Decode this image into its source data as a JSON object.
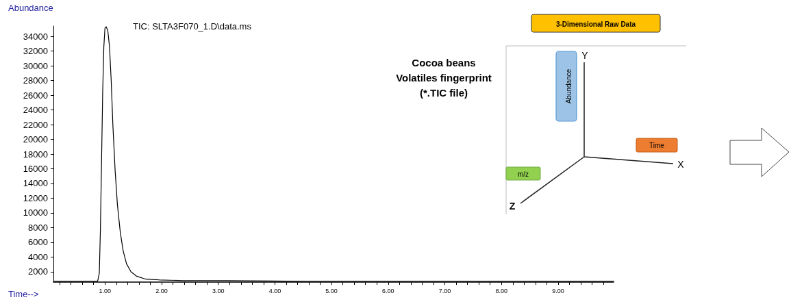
{
  "chart_data": {
    "type": "line",
    "title": "TIC: SLTA3F070_1.D\\data.ms",
    "xlabel": "Time-->",
    "ylabel": "Abundance",
    "annotations": [
      "Cocoa beans\nVolatiles fingerprint\n(*.TIC file)",
      "3-Dimensional Raw Data",
      "Abundance",
      "Time",
      "m/z",
      "Y",
      "X",
      "Z"
    ],
    "series": [
      {
        "color": "#000000",
        "x": [
          0.1,
          0.87,
          0.9,
          0.92,
          0.94,
          0.96,
          0.98,
          1.0,
          1.02,
          1.05,
          1.08,
          1.11,
          1.14,
          1.18,
          1.22,
          1.27,
          1.32,
          1.38,
          1.46,
          1.56,
          1.72,
          1.96,
          2.37,
          3.17,
          4.56,
          9.98
        ],
        "values": [
          700,
          700,
          1800,
          7900,
          17200,
          26500,
          32600,
          35100,
          35300,
          34800,
          32600,
          28000,
          21900,
          15700,
          11100,
          7400,
          4900,
          3100,
          2000,
          1400,
          1000,
          900,
          800,
          800,
          700,
          700
        ]
      }
    ],
    "xlim": [
      0.09,
      9.98
    ],
    "xticks": [
      {
        "value": 0.2,
        "label": null
      },
      {
        "value": 0.4,
        "label": null
      },
      {
        "value": 0.6,
        "label": null
      },
      {
        "value": 0.8,
        "label": null
      },
      {
        "value": 1,
        "label": "1.00"
      },
      {
        "value": 1.2,
        "label": null
      },
      {
        "value": 1.4,
        "label": null
      },
      {
        "value": 1.6,
        "label": null
      },
      {
        "value": 1.8,
        "label": null
      },
      {
        "value": 2,
        "label": "2.00"
      },
      {
        "value": 2.2,
        "label": null
      },
      {
        "value": 2.4,
        "label": null
      },
      {
        "value": 2.6,
        "label": null
      },
      {
        "value": 2.8,
        "label": null
      },
      {
        "value": 3,
        "label": "3.00"
      },
      {
        "value": 3.2,
        "label": null
      },
      {
        "value": 3.4,
        "label": null
      },
      {
        "value": 3.6,
        "label": null
      },
      {
        "value": 3.8,
        "label": null
      },
      {
        "value": 4,
        "label": "4.00"
      },
      {
        "value": 4.2,
        "label": null
      },
      {
        "value": 4.4,
        "label": null
      },
      {
        "value": 4.6,
        "label": null
      },
      {
        "value": 4.8,
        "label": null
      },
      {
        "value": 5,
        "label": "5.00"
      },
      {
        "value": 5.2,
        "label": null
      },
      {
        "value": 5.4,
        "label": null
      },
      {
        "value": 5.6,
        "label": null
      },
      {
        "value": 5.8,
        "label": null
      },
      {
        "value": 6,
        "label": "6.00"
      },
      {
        "value": 6.2,
        "label": null
      },
      {
        "value": 6.4,
        "label": null
      },
      {
        "value": 6.6,
        "label": null
      },
      {
        "value": 6.8,
        "label": null
      },
      {
        "value": 7,
        "label": "7.00"
      },
      {
        "value": 7.2,
        "label": null
      },
      {
        "value": 7.4,
        "label": null
      },
      {
        "value": 7.6,
        "label": null
      },
      {
        "value": 7.8,
        "label": null
      },
      {
        "value": 8,
        "label": "8.00"
      },
      {
        "value": 8.2,
        "label": null
      },
      {
        "value": 8.4,
        "label": null
      },
      {
        "value": 8.6,
        "label": null
      },
      {
        "value": 8.8,
        "label": null
      },
      {
        "value": 9,
        "label": "9.00"
      },
      {
        "value": 9.2,
        "label": null
      },
      {
        "value": 9.4,
        "label": null
      },
      {
        "value": 9.6,
        "label": null
      },
      {
        "value": 9.8,
        "label": null
      }
    ],
    "ylim": [
      600,
      35400
    ],
    "yticks": [
      2000,
      4000,
      6000,
      8000,
      10000,
      12000,
      14000,
      16000,
      18000,
      20000,
      22000,
      24000,
      26000,
      28000,
      30000,
      32000,
      34000
    ],
    "grid": false,
    "marker": "none",
    "line_style": "solid"
  }
}
